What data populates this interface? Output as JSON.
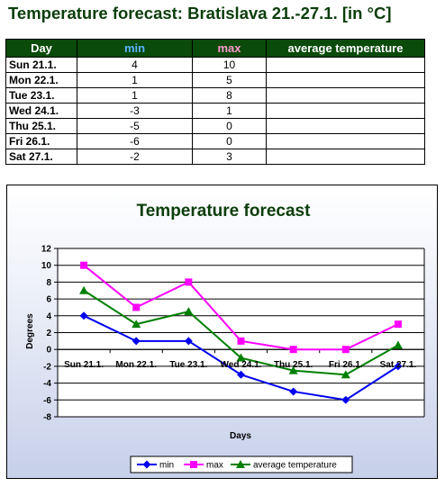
{
  "page": {
    "title": "Temperature forecast: Bratislava 21.-27.1. [in °C]"
  },
  "table": {
    "headers": {
      "day": "Day",
      "min": "min",
      "max": "max",
      "avg": "average temperature"
    },
    "rows": [
      {
        "day": "Sun 21.1.",
        "min": "4",
        "max": "10",
        "avg": ""
      },
      {
        "day": "Mon 22.1.",
        "min": "1",
        "max": "5",
        "avg": ""
      },
      {
        "day": "Tue 23.1.",
        "min": "1",
        "max": "8",
        "avg": ""
      },
      {
        "day": "Wed 24.1.",
        "min": "-3",
        "max": "1",
        "avg": ""
      },
      {
        "day": "Thu 25.1.",
        "min": "-5",
        "max": "0",
        "avg": ""
      },
      {
        "day": "Fri 26.1.",
        "min": "-6",
        "max": "0",
        "avg": ""
      },
      {
        "day": "Sat 27.1.",
        "min": "-2",
        "max": "3",
        "avg": ""
      }
    ]
  },
  "colors": {
    "min": "#0000ee",
    "max": "#ff00ff",
    "avg": "#008000",
    "title": "#0b3d0b",
    "header_bg": "#0a4a0a"
  },
  "chart_data": {
    "type": "line",
    "title": "Temperature forecast",
    "xlabel": "Days",
    "ylabel": "Degrees",
    "categories": [
      "Sun 21.1.",
      "Mon 22.1.",
      "Tue 23.1.",
      "Wed 24.1.",
      "Thu 25.1.",
      "Fri 26.1.",
      "Sat 27.1."
    ],
    "ylim": [
      -8,
      12
    ],
    "yticks": [
      -8,
      -6,
      -4,
      -2,
      0,
      2,
      4,
      6,
      8,
      10,
      12
    ],
    "grid": true,
    "legend_position": "bottom",
    "series": [
      {
        "name": "min",
        "values": [
          4,
          1,
          1,
          -3,
          -5,
          -6,
          -2
        ],
        "color": "#0000ee",
        "marker": "diamond"
      },
      {
        "name": "max",
        "values": [
          10,
          5,
          8,
          1,
          0,
          0,
          3
        ],
        "color": "#ff00ff",
        "marker": "square"
      },
      {
        "name": "average temperature",
        "values": [
          7,
          3,
          4.5,
          -1,
          -2.5,
          -3,
          0.5
        ],
        "color": "#008000",
        "marker": "triangle"
      }
    ]
  }
}
